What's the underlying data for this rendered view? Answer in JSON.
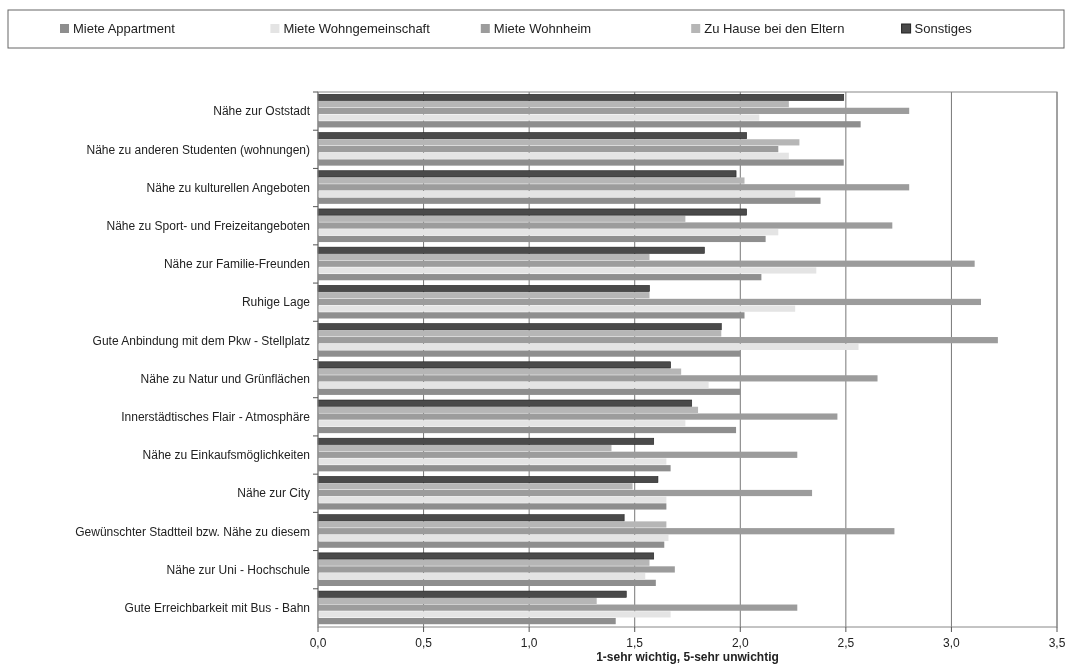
{
  "chart_data": {
    "type": "bar",
    "orientation": "horizontal",
    "xlabel": "1-sehr wichtig, 5-sehr unwichtig",
    "categories": [
      "Nähe zur Oststadt",
      "Nähe zu anderen Studenten (wohnungen)",
      "Nähe zu kulturellen Angeboten",
      "Nähe zu Sport- und Freizeitangeboten",
      "Nähe zur Familie-Freunden",
      "Ruhige Lage",
      "Gute Anbindung mit dem Pkw - Stellplatz",
      "Nähe zu Natur und Grünflächen",
      "Innerstädtisches Flair - Atmosphäre",
      "Nähe zu Einkaufsmöglichkeiten",
      "Nähe zur City",
      "Gewünschter Stadtteil bzw. Nähe zu diesem",
      "Nähe zur Uni - Hochschule",
      "Gute Erreichbarkeit mit Bus - Bahn"
    ],
    "series": [
      {
        "name": "Miete Appartment",
        "color": "#8e8e8e",
        "values": [
          2.57,
          2.49,
          2.38,
          2.12,
          2.1,
          2.02,
          2.0,
          2.0,
          1.98,
          1.67,
          1.65,
          1.64,
          1.6,
          1.41
        ]
      },
      {
        "name": "Miete Wohngemeinschaft",
        "color": "#e4e4e4",
        "values": [
          2.09,
          2.23,
          2.26,
          2.18,
          2.36,
          2.26,
          2.56,
          1.85,
          1.74,
          1.65,
          1.65,
          1.66,
          1.55,
          1.67
        ]
      },
      {
        "name": "Miete Wohnheim",
        "color": "#9c9c9c",
        "values": [
          2.8,
          2.18,
          2.8,
          2.72,
          3.11,
          3.14,
          3.22,
          2.65,
          2.46,
          2.27,
          2.34,
          2.73,
          1.69,
          2.27
        ]
      },
      {
        "name": "Zu Hause bei den Eltern",
        "color": "#b6b6b6",
        "values": [
          2.23,
          2.28,
          2.02,
          1.74,
          1.57,
          1.57,
          1.91,
          1.72,
          1.8,
          1.39,
          1.49,
          1.65,
          1.57,
          1.32
        ]
      },
      {
        "name": "Sonstiges",
        "color": "#4a4a4a",
        "values": [
          2.49,
          2.03,
          1.98,
          2.03,
          1.83,
          1.57,
          1.91,
          1.67,
          1.77,
          1.59,
          1.61,
          1.45,
          1.59,
          1.46
        ]
      }
    ],
    "xlim": [
      0,
      3.5
    ],
    "xticks": [
      {
        "value": 0,
        "label": "0,0"
      },
      {
        "value": 0.5,
        "label": "0,5"
      },
      {
        "value": 1,
        "label": "1,0"
      },
      {
        "value": 1.5,
        "label": "1,5"
      },
      {
        "value": 2,
        "label": "2,0"
      },
      {
        "value": 2.5,
        "label": "2,5"
      },
      {
        "value": 3,
        "label": "3,0"
      },
      {
        "value": 3.5,
        "label": "3,5"
      }
    ],
    "grid": "x",
    "legend": "top"
  }
}
